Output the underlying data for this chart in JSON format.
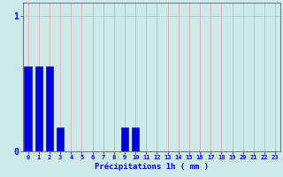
{
  "title": "",
  "xlabel": "Précipitations 1h ( mm )",
  "ylabel": "",
  "xlim": [
    -0.5,
    23.5
  ],
  "ylim": [
    0,
    1.1
  ],
  "yticks": [
    0,
    1
  ],
  "xticks": [
    0,
    1,
    2,
    3,
    4,
    5,
    6,
    7,
    8,
    9,
    10,
    11,
    12,
    13,
    14,
    15,
    16,
    17,
    18,
    19,
    20,
    21,
    22,
    23
  ],
  "bar_values": [
    0.63,
    0.63,
    0.63,
    0.18,
    0,
    0,
    0,
    0,
    0,
    0.18,
    0.18,
    0,
    0,
    0,
    0,
    0,
    0,
    0,
    0,
    0,
    0,
    0,
    0,
    0
  ],
  "bar_color": "#0000dd",
  "bar_edge_color": "#00008b",
  "background_color": "#cce8e8",
  "grid_color_h": "#aacccc",
  "grid_color_v": "#ddaaaa",
  "tick_label_fontsize": 5.0,
  "xlabel_fontsize": 6.5,
  "ytick_fontsize": 7.0
}
